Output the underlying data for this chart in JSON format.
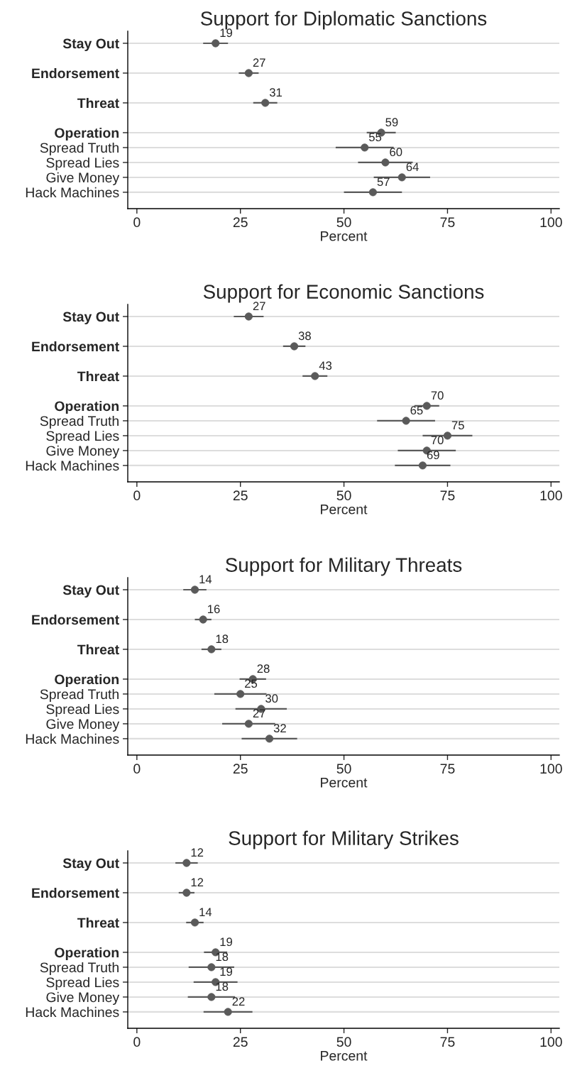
{
  "chart_data": [
    {
      "type": "scatter",
      "orientation": "horizontal",
      "title": "Support for Diplomatic Sanctions",
      "xlabel": "Percent",
      "categories": [
        "Stay Out",
        null,
        "Endorsement",
        null,
        "Threat",
        null,
        "Operation",
        "Spread Truth",
        "Spread Lies",
        "Give Money",
        "Hack Machines"
      ],
      "values": [
        19,
        null,
        27,
        null,
        31,
        null,
        59,
        55,
        60,
        64,
        57
      ],
      "errors": [
        3,
        null,
        2.4,
        null,
        2.9,
        null,
        3.5,
        7,
        6.6,
        6.8,
        7
      ],
      "color": "#5a5a5a",
      "data_labels": true,
      "xlim": [
        -2.2,
        102
      ],
      "xticks": [
        0,
        25,
        50,
        75,
        100
      ],
      "grid": "y"
    },
    {
      "type": "scatter",
      "orientation": "horizontal",
      "title": "Support for Economic Sanctions",
      "xlabel": "Percent",
      "categories": [
        "Stay Out",
        null,
        "Endorsement",
        null,
        "Threat",
        null,
        "Operation",
        "Spread Truth",
        "Spread Lies",
        "Give Money",
        "Hack Machines"
      ],
      "values": [
        27,
        null,
        38,
        null,
        43,
        null,
        70,
        65,
        75,
        70,
        69
      ],
      "errors": [
        3.6,
        null,
        2.7,
        null,
        3,
        null,
        3,
        7,
        6,
        7,
        6.7
      ],
      "color": "#5a5a5a",
      "data_labels": true,
      "xlim": [
        -2.2,
        102
      ],
      "xticks": [
        0,
        25,
        50,
        75,
        100
      ],
      "grid": "y"
    },
    {
      "type": "scatter",
      "orientation": "horizontal",
      "title": "Support for Military Threats",
      "xlabel": "Percent",
      "categories": [
        "Stay Out",
        null,
        "Endorsement",
        null,
        "Threat",
        null,
        "Operation",
        "Spread Truth",
        "Spread Lies",
        "Give Money",
        "Hack Machines"
      ],
      "values": [
        14,
        null,
        16,
        null,
        18,
        null,
        28,
        25,
        30,
        27,
        32
      ],
      "errors": [
        2.8,
        null,
        2,
        null,
        2.4,
        null,
        3.2,
        6.3,
        6.2,
        6.4,
        6.7
      ],
      "color": "#5a5a5a",
      "data_labels": true,
      "xlim": [
        -2.2,
        102
      ],
      "xticks": [
        0,
        25,
        50,
        75,
        100
      ],
      "grid": "y"
    },
    {
      "type": "scatter",
      "orientation": "horizontal",
      "title": "Support for Military Strikes",
      "xlabel": "Percent",
      "categories": [
        "Stay Out",
        null,
        "Endorsement",
        null,
        "Threat",
        null,
        "Operation",
        "Spread Truth",
        "Spread Lies",
        "Give Money",
        "Hack Machines"
      ],
      "values": [
        12,
        null,
        12,
        null,
        14,
        null,
        19,
        18,
        19,
        18,
        22
      ],
      "errors": [
        2.7,
        null,
        1.9,
        null,
        2.1,
        null,
        2.8,
        5.5,
        5.3,
        5.7,
        5.9
      ],
      "color": "#5a5a5a",
      "data_labels": true,
      "xlim": [
        -2.2,
        102
      ],
      "xticks": [
        0,
        25,
        50,
        75,
        100
      ],
      "grid": "y"
    }
  ]
}
